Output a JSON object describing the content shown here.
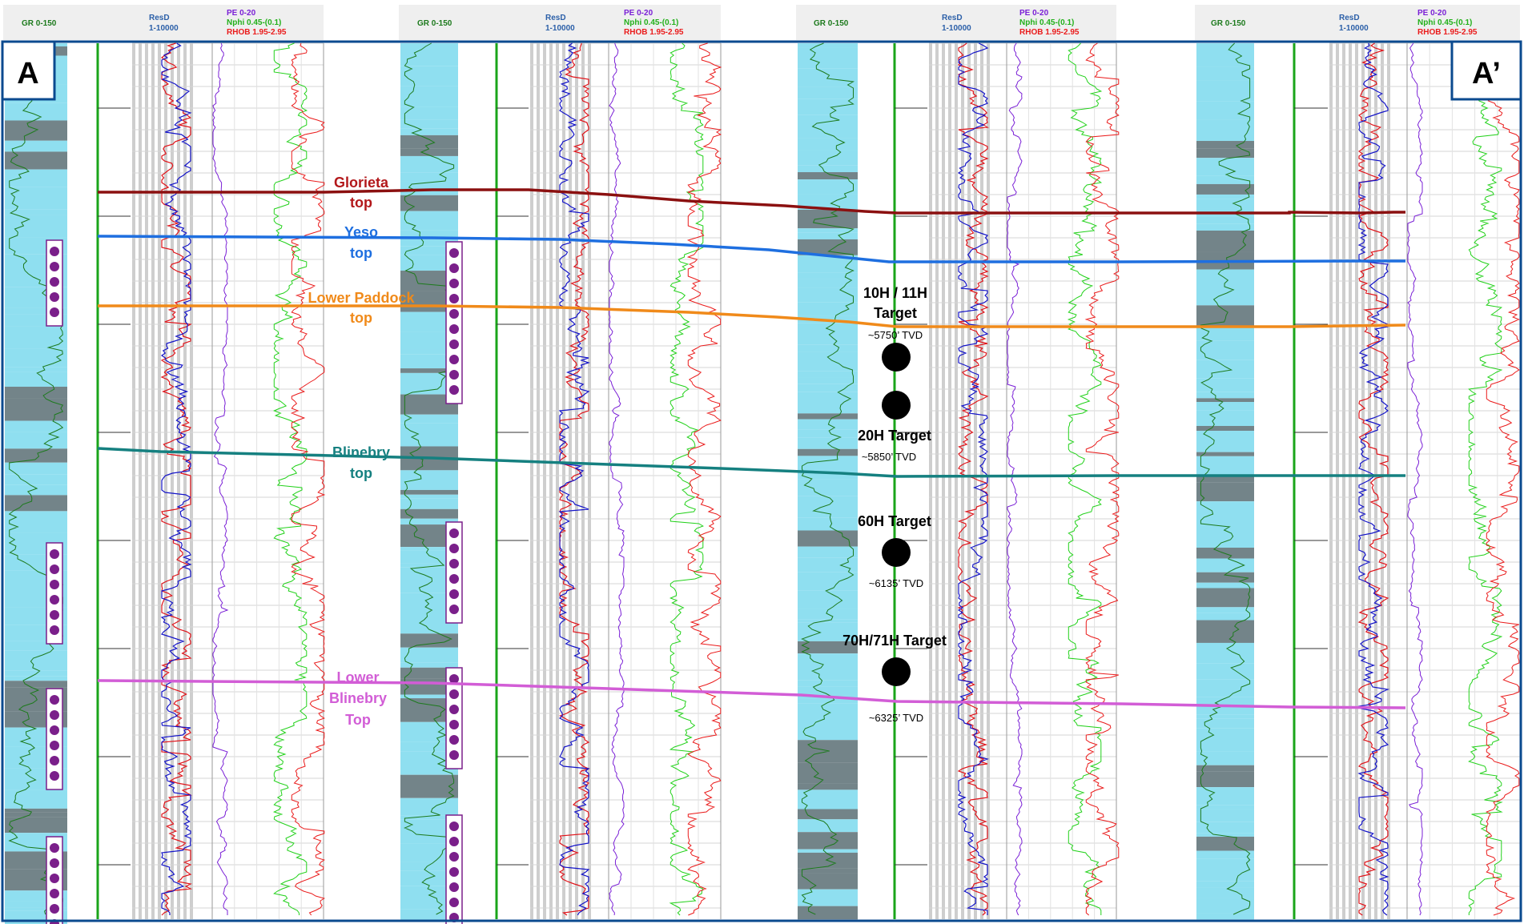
{
  "colors": {
    "frame": "#0b4a8f",
    "gr_fill": "#8fdff0",
    "gr_line": "#1d7a1d",
    "res_red": "#e0141a",
    "res_blue": "#1414c8",
    "pe": "#7a1fd6",
    "nphi": "#22d11a",
    "rhob": "#ea1b1b",
    "depth_line": "#1aa51a",
    "glorieta": "#8b1010",
    "yeso": "#1e6fe0",
    "paddock": "#f08a1a",
    "blinebry": "#158080",
    "lower_blinebry": "#d25dd6",
    "perf": "#7a1f8a",
    "target": "#000000"
  },
  "section": {
    "start_label": "A",
    "end_label": "A’"
  },
  "headers": {
    "gr": "GR 0-150",
    "resd_name": "ResD",
    "resd_range": "1-10000",
    "pe": "PE 0-20",
    "nphi": "Nphi 0.45-(0.1)",
    "rhob": "RHOB 1.95-2.95"
  },
  "tops": [
    {
      "id": "glorieta",
      "line1": "Glorieta",
      "line2": "top",
      "line3": ""
    },
    {
      "id": "yeso",
      "line1": "Yeso",
      "line2": "top",
      "line3": ""
    },
    {
      "id": "paddock",
      "line1": "Lower Paddock",
      "line2": "top",
      "line3": ""
    },
    {
      "id": "blinebry",
      "line1": "Blinebry",
      "line2": "top",
      "line3": ""
    },
    {
      "id": "lower_blinebry",
      "line1": "Lower",
      "line2": "Blinebry",
      "line3": "Top"
    }
  ],
  "targets": [
    {
      "id": "t10",
      "title1": "10H / 11H",
      "title2": "Target",
      "tvd": "~5750’ TVD"
    },
    {
      "id": "t20",
      "title1": "20H Target",
      "title2": "",
      "tvd": "~5850’ TVD"
    },
    {
      "id": "t60",
      "title1": "60H Target",
      "title2": "",
      "tvd": "~6135’ TVD"
    },
    {
      "id": "t70",
      "title1": "70H/71H Target",
      "title2": "",
      "tvd": "~6325’ TVD"
    }
  ]
}
